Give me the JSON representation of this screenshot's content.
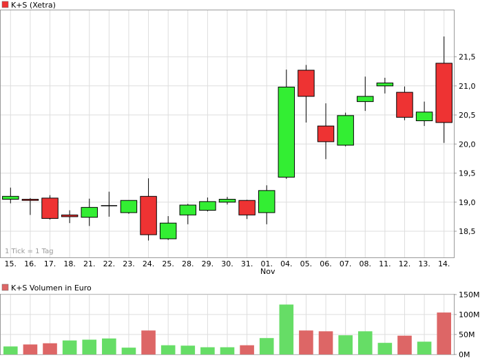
{
  "chart_data": [
    {
      "type": "candlestick",
      "title": "K+S (Xetra)",
      "legend_color": "#ee3333",
      "annotation": "1 Tick = 1 Tag",
      "x_labels": [
        "15.",
        "16.",
        "17.",
        "18.",
        "21.",
        "22.",
        "23.",
        "24.",
        "25.",
        "28.",
        "29.",
        "30.",
        "31.",
        "01.",
        "04.",
        "05.",
        "06.",
        "07.",
        "08.",
        "11.",
        "12.",
        "13.",
        "14."
      ],
      "month_label": "Nov",
      "y_ticks": [
        "18,5",
        "19,0",
        "19,5",
        "20,0",
        "20,5",
        "21,0",
        "21,5"
      ],
      "ylim": [
        18.05,
        22.3
      ],
      "up_color": "#33ee33",
      "down_color": "#ee3333",
      "candles": [
        {
          "open": 19.05,
          "high": 19.25,
          "low": 18.98,
          "close": 19.1
        },
        {
          "open": 19.05,
          "high": 19.07,
          "low": 18.78,
          "close": 19.03
        },
        {
          "open": 19.07,
          "high": 19.12,
          "low": 18.7,
          "close": 18.72
        },
        {
          "open": 18.78,
          "high": 18.86,
          "low": 18.64,
          "close": 18.75
        },
        {
          "open": 18.74,
          "high": 19.06,
          "low": 18.59,
          "close": 18.91
        },
        {
          "open": 18.94,
          "high": 19.18,
          "low": 18.75,
          "close": 18.94
        },
        {
          "open": 18.82,
          "high": 19.03,
          "low": 18.8,
          "close": 19.03
        },
        {
          "open": 19.1,
          "high": 19.41,
          "low": 18.34,
          "close": 18.44
        },
        {
          "open": 18.37,
          "high": 18.76,
          "low": 18.35,
          "close": 18.64
        },
        {
          "open": 18.78,
          "high": 18.97,
          "low": 18.62,
          "close": 18.95
        },
        {
          "open": 18.86,
          "high": 19.08,
          "low": 18.84,
          "close": 19.01
        },
        {
          "open": 19.0,
          "high": 19.09,
          "low": 18.96,
          "close": 19.05
        },
        {
          "open": 19.03,
          "high": 19.04,
          "low": 18.71,
          "close": 18.78
        },
        {
          "open": 18.82,
          "high": 19.29,
          "low": 18.62,
          "close": 19.2
        },
        {
          "open": 19.43,
          "high": 21.28,
          "low": 19.4,
          "close": 20.98
        },
        {
          "open": 21.27,
          "high": 21.36,
          "low": 20.37,
          "close": 20.82
        },
        {
          "open": 20.31,
          "high": 20.7,
          "low": 19.74,
          "close": 20.04
        },
        {
          "open": 19.98,
          "high": 20.54,
          "low": 19.96,
          "close": 20.49
        },
        {
          "open": 20.73,
          "high": 21.16,
          "low": 20.57,
          "close": 20.82
        },
        {
          "open": 21.0,
          "high": 21.14,
          "low": 20.87,
          "close": 21.05
        },
        {
          "open": 20.89,
          "high": 20.99,
          "low": 20.41,
          "close": 20.46
        },
        {
          "open": 20.4,
          "high": 20.73,
          "low": 20.31,
          "close": 20.55
        },
        {
          "open": 21.39,
          "high": 21.85,
          "low": 20.02,
          "close": 20.37
        }
      ]
    },
    {
      "type": "bar",
      "title": "K+S Volumen in Euro",
      "legend_color": "#dd6666",
      "y_ticks": [
        "0M",
        "50M",
        "100M",
        "150M"
      ],
      "ylim": [
        0,
        150
      ],
      "up_color": "#66dd66",
      "down_color": "#dd6666",
      "values": [
        20,
        25,
        28,
        35,
        37,
        40,
        17,
        60,
        23,
        22,
        18,
        18,
        23,
        41,
        125,
        60,
        58,
        48,
        58,
        29,
        47,
        32,
        105
      ],
      "colors": [
        "up",
        "down",
        "down",
        "up",
        "up",
        "up",
        "up",
        "down",
        "up",
        "up",
        "up",
        "up",
        "down",
        "up",
        "up",
        "down",
        "down",
        "up",
        "up",
        "up",
        "down",
        "up",
        "down"
      ]
    }
  ]
}
